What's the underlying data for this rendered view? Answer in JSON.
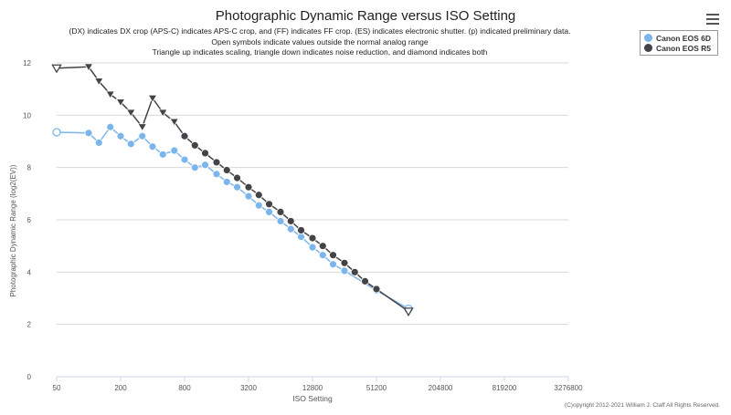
{
  "menu": {
    "icon": "hamburger-menu-icon"
  },
  "chart_data": {
    "type": "line",
    "title": "Photographic Dynamic Range versus ISO Setting",
    "subtitle_lines": [
      "(DX) indicates DX crop (APS-C) indicates APS-C crop, and (FF) indicates FF crop. (ES) indicates electronic shutter. (p) indicated preliminary data.",
      "Open symbols indicate values outside the normal analog range",
      "Triangle up indicates scaling, triangle down indicates noise reduction, and diamond indicates both"
    ],
    "xlabel": "ISO Setting",
    "ylabel": "Photographic Dynamic Range (log2(EV))",
    "x_scale": "log2",
    "xlim": [
      50,
      3276800
    ],
    "ylim": [
      0,
      12
    ],
    "x_ticks": [
      "50",
      "200",
      "800",
      "3200",
      "12800",
      "51200",
      "204800",
      "819200",
      "3276800"
    ],
    "y_ticks": [
      "0",
      "2",
      "4",
      "6",
      "8",
      "10",
      "12"
    ],
    "grid": "horizontal",
    "legend_position": "top-right",
    "series": [
      {
        "name": "Canon EOS 6D",
        "color": "#7cb5ec",
        "marker": "circle",
        "points": [
          {
            "x": 50,
            "y": 9.35,
            "open": true
          },
          {
            "x": 100,
            "y": 9.32
          },
          {
            "x": 125,
            "y": 8.95
          },
          {
            "x": 160,
            "y": 9.55
          },
          {
            "x": 200,
            "y": 9.2
          },
          {
            "x": 250,
            "y": 8.9
          },
          {
            "x": 320,
            "y": 9.2
          },
          {
            "x": 400,
            "y": 8.8
          },
          {
            "x": 500,
            "y": 8.5
          },
          {
            "x": 640,
            "y": 8.65
          },
          {
            "x": 800,
            "y": 8.3
          },
          {
            "x": 1000,
            "y": 8.0
          },
          {
            "x": 1250,
            "y": 8.1
          },
          {
            "x": 1600,
            "y": 7.75
          },
          {
            "x": 2000,
            "y": 7.45
          },
          {
            "x": 2500,
            "y": 7.25
          },
          {
            "x": 3200,
            "y": 6.9
          },
          {
            "x": 4000,
            "y": 6.55
          },
          {
            "x": 5000,
            "y": 6.3
          },
          {
            "x": 6400,
            "y": 5.95
          },
          {
            "x": 8000,
            "y": 5.65
          },
          {
            "x": 10000,
            "y": 5.35
          },
          {
            "x": 12800,
            "y": 4.95
          },
          {
            "x": 16000,
            "y": 4.65
          },
          {
            "x": 20000,
            "y": 4.3
          },
          {
            "x": 25600,
            "y": 4.05
          },
          {
            "x": 51200,
            "y": 3.3
          },
          {
            "x": 102400,
            "y": 2.6,
            "open": true
          }
        ]
      },
      {
        "name": "Canon EOS R5",
        "color": "#434348",
        "marker": "circle",
        "points": [
          {
            "x": 50,
            "y": 11.8,
            "marker": "triangle-down",
            "open": true
          },
          {
            "x": 100,
            "y": 11.85,
            "marker": "triangle-down"
          },
          {
            "x": 125,
            "y": 11.3,
            "marker": "triangle-down"
          },
          {
            "x": 160,
            "y": 10.8,
            "marker": "triangle-down"
          },
          {
            "x": 200,
            "y": 10.5,
            "marker": "triangle-down"
          },
          {
            "x": 250,
            "y": 10.1,
            "marker": "triangle-down"
          },
          {
            "x": 320,
            "y": 9.55,
            "marker": "triangle-down"
          },
          {
            "x": 400,
            "y": 10.65,
            "marker": "triangle-down"
          },
          {
            "x": 500,
            "y": 10.1,
            "marker": "triangle-down"
          },
          {
            "x": 640,
            "y": 9.75,
            "marker": "triangle-down"
          },
          {
            "x": 800,
            "y": 9.2
          },
          {
            "x": 1000,
            "y": 8.85
          },
          {
            "x": 1250,
            "y": 8.55
          },
          {
            "x": 1600,
            "y": 8.2
          },
          {
            "x": 2000,
            "y": 7.9
          },
          {
            "x": 2500,
            "y": 7.6
          },
          {
            "x": 3200,
            "y": 7.25
          },
          {
            "x": 4000,
            "y": 6.95
          },
          {
            "x": 5000,
            "y": 6.6
          },
          {
            "x": 6400,
            "y": 6.3
          },
          {
            "x": 8000,
            "y": 5.95
          },
          {
            "x": 10000,
            "y": 5.6
          },
          {
            "x": 12800,
            "y": 5.3
          },
          {
            "x": 16000,
            "y": 5.0
          },
          {
            "x": 20000,
            "y": 4.65
          },
          {
            "x": 25600,
            "y": 4.35
          },
          {
            "x": 32000,
            "y": 4.0
          },
          {
            "x": 40000,
            "y": 3.65
          },
          {
            "x": 51200,
            "y": 3.35
          },
          {
            "x": 102400,
            "y": 2.5,
            "marker": "triangle-down",
            "open": true
          }
        ]
      }
    ]
  },
  "copyright": "(C)opyright 2012-2021 William J. Claff All Rights Reserved."
}
